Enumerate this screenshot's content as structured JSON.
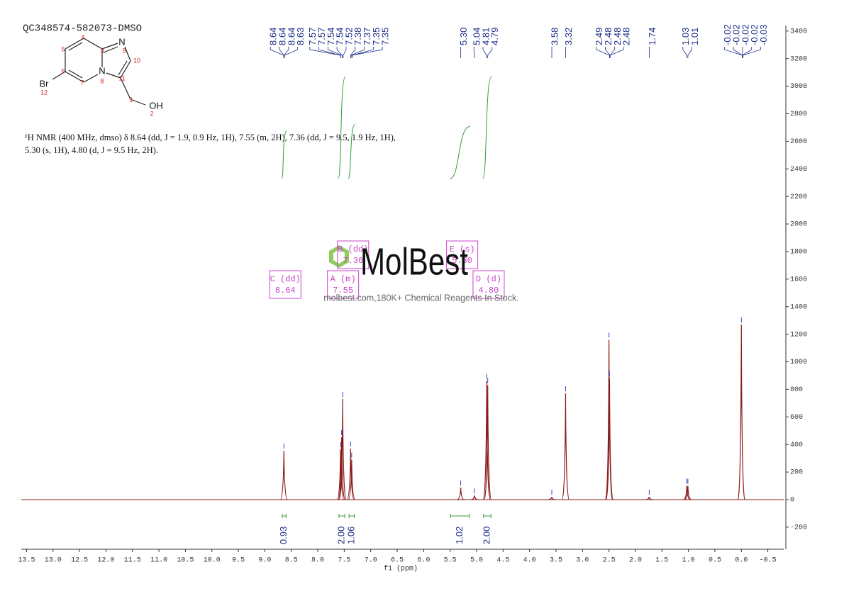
{
  "chart_data": {
    "type": "nmr",
    "title": "QC348574-582073-DMSO",
    "x_label": "f1 (ppm)",
    "xlim": [
      13.6,
      -0.8
    ],
    "ylim": [
      -360,
      3440
    ],
    "xticks": [
      {
        "value": 13.5,
        "label": "13.5"
      },
      {
        "value": 13,
        "label": "13.0"
      },
      {
        "value": 12.5,
        "label": "12.5"
      },
      {
        "value": 12,
        "label": "12.0"
      },
      {
        "value": 11.5,
        "label": "11.5"
      },
      {
        "value": 11,
        "label": "11.0"
      },
      {
        "value": 10.5,
        "label": "10.5"
      },
      {
        "value": 10,
        "label": "10.0"
      },
      {
        "value": 9.5,
        "label": "9.5"
      },
      {
        "value": 9,
        "label": "9.0"
      },
      {
        "value": 8.5,
        "label": "8.5"
      },
      {
        "value": 8,
        "label": "8.0"
      },
      {
        "value": 7.5,
        "label": "7.5"
      },
      {
        "value": 7,
        "label": "7.0"
      },
      {
        "value": 6.5,
        "label": "6.5"
      },
      {
        "value": 6,
        "label": "6.0"
      },
      {
        "value": 5.5,
        "label": "5.5"
      },
      {
        "value": 5,
        "label": "5.0"
      },
      {
        "value": 4.5,
        "label": "4.5"
      },
      {
        "value": 4,
        "label": "4.0"
      },
      {
        "value": 3.5,
        "label": "3.5"
      },
      {
        "value": 3,
        "label": "3.0"
      },
      {
        "value": 2.5,
        "label": "2.5"
      },
      {
        "value": 2,
        "label": "2.0"
      },
      {
        "value": 1.5,
        "label": "1.5"
      },
      {
        "value": 1,
        "label": "1.0"
      },
      {
        "value": 0.5,
        "label": "0.5"
      },
      {
        "value": 0,
        "label": "0.0"
      },
      {
        "value": -0.5,
        "label": "-0.5"
      }
    ],
    "yticks": [
      -200,
      0,
      200,
      400,
      600,
      800,
      1000,
      1200,
      1400,
      1600,
      1800,
      2000,
      2200,
      2400,
      2600,
      2800,
      3000,
      3200,
      3400
    ],
    "x": [
      8.64,
      7.57,
      7.55,
      7.53,
      7.38,
      7.36,
      5.3,
      5.04,
      4.81,
      4.79,
      3.58,
      3.32,
      2.5,
      2.49,
      1.74,
      1.03,
      1.01,
      0.0
    ],
    "values": [
      355,
      365,
      452,
      730,
      370,
      290,
      87,
      30,
      860,
      830,
      20,
      771,
      1160,
      880,
      20,
      100,
      100,
      1270
    ],
    "color": "#8b1a1a",
    "peak_labels": [
      "8.64",
      "8.64",
      "8.64",
      "8.63",
      "7.57",
      "7.57",
      "7.54",
      "7.54",
      "7.52",
      "7.38",
      "7.37",
      "7.35",
      "7.35",
      "5.30",
      "5.04",
      "4.81",
      "4.79",
      "3.58",
      "3.32",
      "2.49",
      "2.48",
      "2.48",
      "2.48",
      "1.74",
      "1.03",
      "1.01",
      "-0.02",
      "-0.02",
      "-0.02",
      "-0.02",
      "-0.03"
    ],
    "integrals": {
      "values": [
        0.93,
        2,
        1.06,
        1.02,
        2
      ],
      "value_labels": [
        "0.93",
        "2.00",
        "1.06",
        "1.02",
        "2.00"
      ],
      "ranges": [
        [
          8.67,
          8.6
        ],
        [
          7.6,
          7.49
        ],
        [
          7.41,
          7.31
        ],
        [
          5.49,
          5.14
        ],
        [
          4.87,
          4.73
        ]
      ]
    },
    "multiplets": [
      {
        "label": "C (dd)",
        "shift": "8.64"
      },
      {
        "label": "B (dd)",
        "shift": "7.36"
      },
      {
        "label": "A (m)",
        "shift": "7.55"
      },
      {
        "label": "E (s)",
        "shift": "5.30"
      },
      {
        "label": "D (d)",
        "shift": "4.80"
      }
    ]
  },
  "annotation": [
    "¹H NMR (400 MHz, dmso) δ 8.64 (dd, J = 1.9, 0.9 Hz, 1H), 7.55 (m, 2H), 7.36 (dd, J = 9.5, 1.9 Hz, 1H),",
    "5.30 (s, 1H), 4.80 (d, J = 9.5 Hz, 2H)."
  ],
  "structure": {
    "atoms": [
      "N",
      "N",
      "Br",
      "OH"
    ],
    "numbers": [
      "1",
      "2",
      "3",
      "4",
      "5",
      "6",
      "7",
      "8",
      "9",
      "10",
      "11",
      "12"
    ]
  },
  "watermark": {
    "brand": "MolBest",
    "tagline": "molbest.com,180K+ Chemical Reagents In Stock."
  }
}
